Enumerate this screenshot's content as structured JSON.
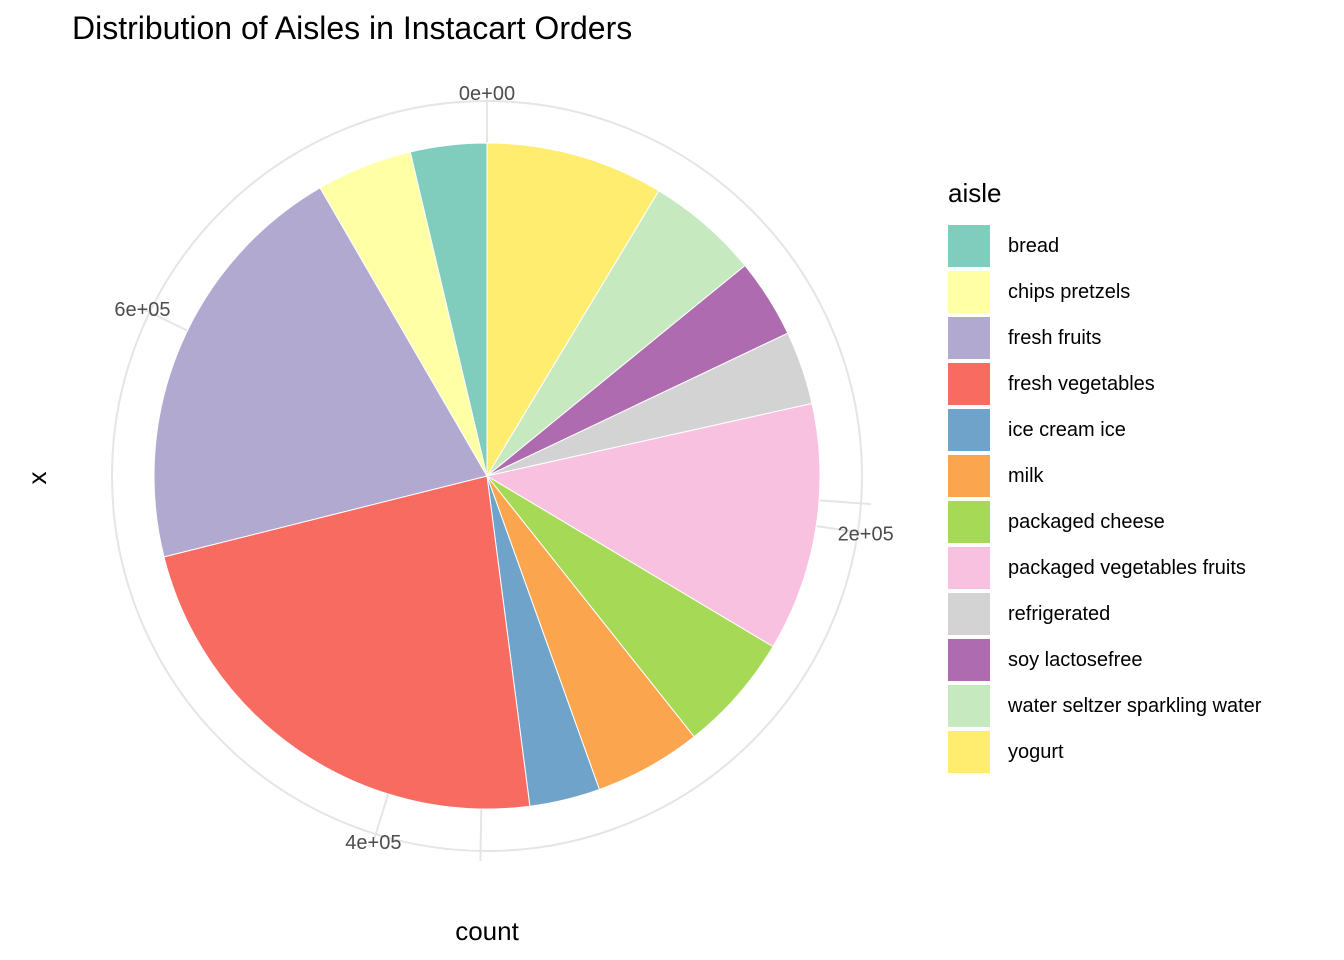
{
  "chart_data": {
    "type": "pie",
    "title": "Distribution of Aisles in Instacart Orders",
    "xlabel": "count",
    "ylabel": "x",
    "legend_title": "aisle",
    "legend_position": "right",
    "grid": true,
    "total": 730000,
    "axis_ticks": [
      {
        "value": 0,
        "label": "0e+00"
      },
      {
        "value": 200000,
        "label": "2e+05"
      },
      {
        "value": 400000,
        "label": "4e+05"
      },
      {
        "value": 600000,
        "label": "6e+05"
      }
    ],
    "slices": [
      {
        "name": "yogurt",
        "value": 63000,
        "color": "#FFED6F"
      },
      {
        "name": "water seltzer sparkling water",
        "value": 40000,
        "color": "#C7E9C0"
      },
      {
        "name": "soy lactosefree",
        "value": 28000,
        "color": "#AE6BB0"
      },
      {
        "name": "refrigerated",
        "value": 26000,
        "color": "#D3D3D3"
      },
      {
        "name": "packaged vegetables fruits",
        "value": 88000,
        "color": "#F8C1E0"
      },
      {
        "name": "packaged cheese",
        "value": 42000,
        "color": "#A6DA56"
      },
      {
        "name": "milk",
        "value": 38000,
        "color": "#FCA54F"
      },
      {
        "name": "ice cream ice",
        "value": 25000,
        "color": "#70A3CA"
      },
      {
        "name": "fresh vegetables",
        "value": 169000,
        "color": "#F86B60"
      },
      {
        "name": "fresh fruits",
        "value": 150000,
        "color": "#B1A9D0"
      },
      {
        "name": "chips pretzels",
        "value": 34000,
        "color": "#FFFFA6"
      },
      {
        "name": "bread",
        "value": 27000,
        "color": "#80CDBD"
      }
    ],
    "legend_order": [
      "bread",
      "chips pretzels",
      "fresh fruits",
      "fresh vegetables",
      "ice cream ice",
      "milk",
      "packaged cheese",
      "packaged vegetables fruits",
      "refrigerated",
      "soy lactosefree",
      "water seltzer sparkling water",
      "yogurt"
    ]
  }
}
